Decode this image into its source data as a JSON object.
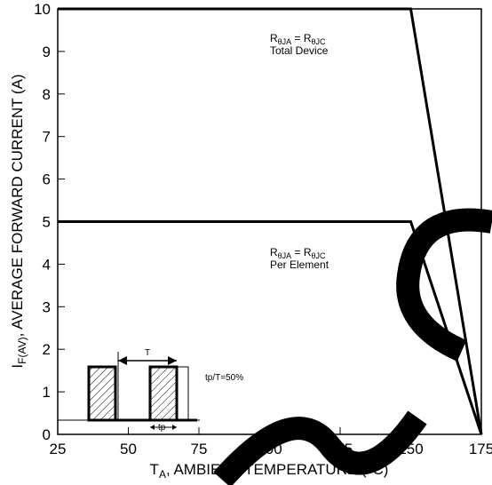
{
  "chart_data": {
    "type": "line",
    "xlabel_main": "T",
    "xlabel_sub": "A",
    "xlabel_rest": ", AMBIENT TEMPERATURE (°C)",
    "ylabel_main": "I",
    "ylabel_sub": "F(AV)",
    "ylabel_rest": ", AVERAGE FORWARD CURRENT (A)",
    "xlim": [
      25,
      175
    ],
    "ylim": [
      0,
      10
    ],
    "x_ticks": [
      "25",
      "50",
      "75",
      "100",
      "125",
      "150",
      "175"
    ],
    "y_ticks": [
      "0",
      "1",
      "2",
      "3",
      "4",
      "5",
      "6",
      "7",
      "8",
      "9",
      "10"
    ],
    "grid": false,
    "series": [
      {
        "points": [
          [
            25,
            10
          ],
          [
            150,
            10
          ],
          [
            175,
            0
          ]
        ]
      },
      {
        "points": [
          [
            25,
            5
          ],
          [
            150,
            5
          ],
          [
            175,
            0
          ]
        ]
      },
      {
        "points": [
          [
            150,
            10
          ],
          [
            175,
            0
          ]
        ]
      },
      {
        "points": [
          [
            150,
            5
          ],
          [
            175,
            0
          ]
        ]
      }
    ],
    "annotations": {
      "total_device": {
        "r1": "R",
        "r1_sub": "θJA",
        "eq": " = ",
        "r2": "R",
        "r2_sub": "θJC",
        "line2": "Total Device"
      },
      "per_element": {
        "r1": "R",
        "r1_sub": "θJA",
        "eq": " = ",
        "r2": "R",
        "r2_sub": "θJC",
        "line2": "Per Element"
      }
    },
    "inset": {
      "period_label": "T",
      "pulse_label": "tp",
      "duty_label": "tp/T=50%"
    }
  }
}
